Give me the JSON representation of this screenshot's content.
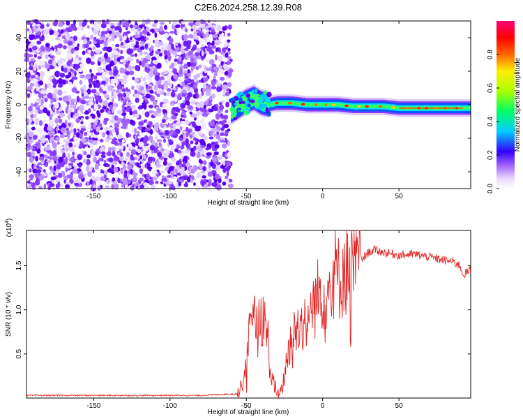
{
  "title": "C2E6.2024.258.12.39.R08",
  "chart_data": [
    {
      "type": "heatmap",
      "name": "spectrogram",
      "xlabel": "Height of straight line (km)",
      "ylabel": "Frequency (Hz)",
      "xlim": [
        -194,
        97
      ],
      "ylim": [
        -50,
        50
      ],
      "xticks": [
        -150,
        -100,
        -50,
        0,
        50
      ],
      "xtick_labels": [
        "-150",
        "-100",
        "-50",
        "0",
        "50"
      ],
      "yticks": [
        -40,
        -20,
        0,
        20,
        40
      ],
      "ytick_labels": [
        "-40",
        "-20",
        "0",
        "20",
        "40"
      ],
      "noise_region_km": [
        -194,
        -60
      ],
      "signal_track": {
        "x": [
          -60,
          -55,
          -50,
          -45,
          -40,
          -35,
          -30,
          -20,
          -10,
          0,
          10,
          20,
          30,
          40,
          50,
          60,
          70,
          80,
          90,
          97
        ],
        "freq_hz": [
          -4,
          -1,
          2,
          4,
          1,
          0,
          1,
          1,
          0,
          0,
          0,
          -1,
          -1,
          -1,
          -2,
          -2,
          -2,
          -2,
          -2,
          -2
        ]
      },
      "colorbar": {
        "label": "Normalized spectral amplitude",
        "ticks": [
          0.0,
          0.2,
          0.4,
          0.6,
          0.8
        ],
        "tick_labels": [
          "0.0",
          "0.2",
          "0.4",
          "0.6",
          "0.8"
        ],
        "range": [
          0,
          1
        ]
      }
    },
    {
      "type": "line",
      "name": "snr",
      "xlabel": "Height of straight line (km)",
      "ylabel": "SNR (10 * v/v)",
      "exponent_label": "(x10",
      "exponent_power": "4",
      "exponent_close": ")",
      "xlim": [
        -194,
        97
      ],
      "ylim": [
        0,
        1.9
      ],
      "xticks": [
        -150,
        -100,
        -50,
        0,
        50
      ],
      "xtick_labels": [
        "-150",
        "-100",
        "-50",
        "0",
        "50"
      ],
      "yticks": [
        0.5,
        1.0,
        1.5
      ],
      "ytick_labels": [
        "0.5",
        "1.0",
        "1.5"
      ],
      "series_color": "#e02020",
      "anchor_points": {
        "x": [
          -194,
          -80,
          -55,
          -52,
          -48,
          -44,
          -40,
          -36,
          -34,
          -30,
          -28,
          -26,
          -22,
          -18,
          -14,
          -10,
          -6,
          -2,
          2,
          6,
          8,
          10,
          14,
          20,
          26,
          30,
          34,
          40,
          50,
          60,
          70,
          80,
          85,
          90,
          92,
          97
        ],
        "y": [
          0.03,
          0.03,
          0.05,
          0.2,
          0.7,
          0.85,
          0.95,
          0.7,
          0.25,
          0.08,
          0.05,
          0.15,
          0.6,
          0.75,
          0.85,
          0.9,
          1.05,
          1.2,
          1.22,
          1.3,
          1.5,
          1.35,
          1.45,
          1.5,
          1.58,
          1.65,
          1.68,
          1.65,
          1.62,
          1.63,
          1.6,
          1.56,
          1.55,
          1.5,
          1.4,
          1.45
        ]
      }
    }
  ]
}
